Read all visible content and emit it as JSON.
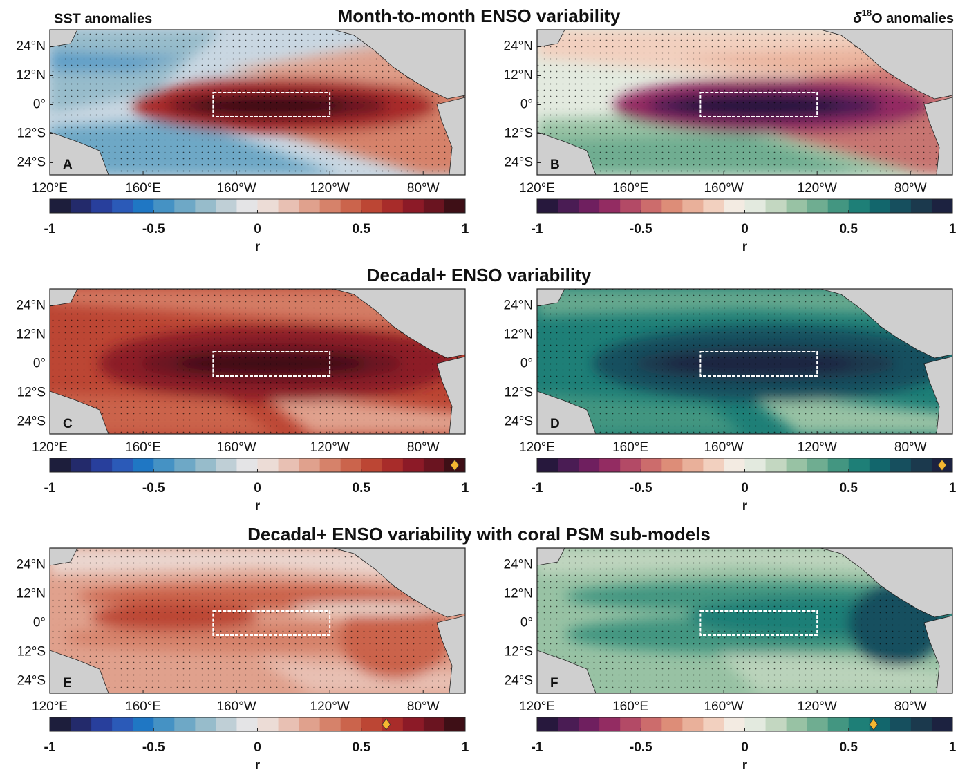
{
  "figure": {
    "row_titles": [
      "Month-to-month ENSO variability",
      "Decadal+ ENSO variability",
      "Decadal+ ENSO variability with coral PSM sub-models"
    ],
    "left_header": "SST anomalies",
    "right_header": {
      "prefix": "δ",
      "sup": "18",
      "suffix": "O anomalies"
    }
  },
  "colormaps": {
    "balance": [
      "#1d1e3c",
      "#232a6b",
      "#283f9c",
      "#2b5ab8",
      "#1f77c4",
      "#4592c4",
      "#6ea8c6",
      "#97bccb",
      "#bfcfd6",
      "#e4e4e6",
      "#ecdcd6",
      "#e8c0b3",
      "#e0a18d",
      "#d6826a",
      "#cb644c",
      "#bc4634",
      "#a82c2a",
      "#8c1a27",
      "#6a1420",
      "#3e0f16"
    ],
    "curl": [
      "#27183d",
      "#4a1c54",
      "#6f1f5f",
      "#932c62",
      "#b34a66",
      "#cc6c6c",
      "#dd8d78",
      "#e9b09a",
      "#f2d0bf",
      "#f3ebe2",
      "#e3eadf",
      "#c3d7c1",
      "#98c2a4",
      "#6fad91",
      "#439681",
      "#1e7f77",
      "#12666c",
      "#164f5e",
      "#1b394d",
      "#1c2240"
    ]
  },
  "chart_data": [
    {
      "type": "map",
      "panel_label": "A",
      "xlim": [
        120,
        298
      ],
      "ylim": [
        -29,
        31
      ],
      "xticks": [
        {
          "value": 120,
          "label": "120°E"
        },
        {
          "value": 160,
          "label": "160°E"
        },
        {
          "value": 200,
          "label": "160°W"
        },
        {
          "value": 240,
          "label": "120°W"
        },
        {
          "value": 280,
          "label": "80°W"
        }
      ],
      "yticks": [
        {
          "value": 24,
          "label": "24°N"
        },
        {
          "value": 12,
          "label": "12°N"
        },
        {
          "value": 0,
          "label": "0°"
        },
        {
          "value": -12,
          "label": "12°S"
        },
        {
          "value": -24,
          "label": "24°S"
        }
      ],
      "box": {
        "lon": [
          190,
          240
        ],
        "lat": [
          -5,
          5
        ]
      },
      "colorbar": {
        "colormap": "balance",
        "clim": [
          -1,
          1
        ],
        "ticks": [
          -1,
          -0.5,
          0,
          0.5,
          1
        ],
        "label": "r"
      }
    },
    {
      "type": "map",
      "panel_label": "B",
      "xlim": [
        120,
        298
      ],
      "ylim": [
        -29,
        31
      ],
      "xticks": [
        {
          "value": 120,
          "label": "120°E"
        },
        {
          "value": 160,
          "label": "160°E"
        },
        {
          "value": 200,
          "label": "160°W"
        },
        {
          "value": 240,
          "label": "120°W"
        },
        {
          "value": 280,
          "label": "80°W"
        }
      ],
      "yticks": [
        {
          "value": 24,
          "label": "24°N"
        },
        {
          "value": 12,
          "label": "12°N"
        },
        {
          "value": 0,
          "label": "0°"
        },
        {
          "value": -12,
          "label": "12°S"
        },
        {
          "value": -24,
          "label": "24°S"
        }
      ],
      "box": {
        "lon": [
          190,
          240
        ],
        "lat": [
          -5,
          5
        ]
      },
      "colorbar": {
        "colormap": "curl",
        "clim": [
          -1,
          1
        ],
        "ticks": [
          -1,
          -0.5,
          0,
          0.5,
          1
        ],
        "label": "r"
      }
    },
    {
      "type": "map",
      "panel_label": "C",
      "xlim": [
        120,
        298
      ],
      "ylim": [
        -29,
        31
      ],
      "xticks": [
        {
          "value": 120,
          "label": "120°E"
        },
        {
          "value": 160,
          "label": "160°E"
        },
        {
          "value": 200,
          "label": "160°W"
        },
        {
          "value": 240,
          "label": "120°W"
        },
        {
          "value": 280,
          "label": "80°W"
        }
      ],
      "yticks": [
        {
          "value": 24,
          "label": "24°N"
        },
        {
          "value": 12,
          "label": "12°N"
        },
        {
          "value": 0,
          "label": "0°"
        },
        {
          "value": -12,
          "label": "12°S"
        },
        {
          "value": -24,
          "label": "24°S"
        }
      ],
      "box": {
        "lon": [
          190,
          240
        ],
        "lat": [
          -5,
          5
        ]
      },
      "colorbar": {
        "colormap": "balance",
        "clim": [
          -1,
          1
        ],
        "ticks": [
          -1,
          -0.5,
          0,
          0.5,
          1
        ],
        "label": "r",
        "marker": {
          "value": 0.95,
          "color": "#f5b731"
        }
      }
    },
    {
      "type": "map",
      "panel_label": "D",
      "xlim": [
        120,
        298
      ],
      "ylim": [
        -29,
        31
      ],
      "xticks": [
        {
          "value": 120,
          "label": "120°E"
        },
        {
          "value": 160,
          "label": "160°E"
        },
        {
          "value": 200,
          "label": "160°W"
        },
        {
          "value": 240,
          "label": "120°W"
        },
        {
          "value": 280,
          "label": "80°W"
        }
      ],
      "yticks": [
        {
          "value": 24,
          "label": "24°N"
        },
        {
          "value": 12,
          "label": "12°N"
        },
        {
          "value": 0,
          "label": "0°"
        },
        {
          "value": -12,
          "label": "12°S"
        },
        {
          "value": -24,
          "label": "24°S"
        }
      ],
      "box": {
        "lon": [
          190,
          240
        ],
        "lat": [
          -5,
          5
        ]
      },
      "colorbar": {
        "colormap": "curl",
        "clim": [
          -1,
          1
        ],
        "ticks": [
          -1,
          -0.5,
          0,
          0.5,
          1
        ],
        "label": "r",
        "marker": {
          "value": 0.95,
          "color": "#f5b731"
        }
      }
    },
    {
      "type": "map",
      "panel_label": "E",
      "xlim": [
        120,
        298
      ],
      "ylim": [
        -29,
        31
      ],
      "xticks": [
        {
          "value": 120,
          "label": "120°E"
        },
        {
          "value": 160,
          "label": "160°E"
        },
        {
          "value": 200,
          "label": "160°W"
        },
        {
          "value": 240,
          "label": "120°W"
        },
        {
          "value": 280,
          "label": "80°W"
        }
      ],
      "yticks": [
        {
          "value": 24,
          "label": "24°N"
        },
        {
          "value": 12,
          "label": "12°N"
        },
        {
          "value": 0,
          "label": "0°"
        },
        {
          "value": -12,
          "label": "12°S"
        },
        {
          "value": -24,
          "label": "24°S"
        }
      ],
      "box": {
        "lon": [
          190,
          240
        ],
        "lat": [
          -5,
          5
        ]
      },
      "colorbar": {
        "colormap": "balance",
        "clim": [
          -1,
          1
        ],
        "ticks": [
          -1,
          -0.5,
          0,
          0.5,
          1
        ],
        "label": "r",
        "marker": {
          "value": 0.62,
          "color": "#f5b731"
        }
      }
    },
    {
      "type": "map",
      "panel_label": "F",
      "xlim": [
        120,
        298
      ],
      "ylim": [
        -29,
        31
      ],
      "xticks": [
        {
          "value": 120,
          "label": "120°E"
        },
        {
          "value": 160,
          "label": "160°E"
        },
        {
          "value": 200,
          "label": "160°W"
        },
        {
          "value": 240,
          "label": "120°W"
        },
        {
          "value": 280,
          "label": "80°W"
        }
      ],
      "yticks": [
        {
          "value": 24,
          "label": "24°N"
        },
        {
          "value": 12,
          "label": "12°N"
        },
        {
          "value": 0,
          "label": "0°"
        },
        {
          "value": -12,
          "label": "12°S"
        },
        {
          "value": -24,
          "label": "24°S"
        }
      ],
      "box": {
        "lon": [
          190,
          240
        ],
        "lat": [
          -5,
          5
        ]
      },
      "colorbar": {
        "colormap": "curl",
        "clim": [
          -1,
          1
        ],
        "ticks": [
          -1,
          -0.5,
          0,
          0.5,
          1
        ],
        "label": "r",
        "marker": {
          "value": 0.62,
          "color": "#f5b731"
        }
      }
    }
  ]
}
